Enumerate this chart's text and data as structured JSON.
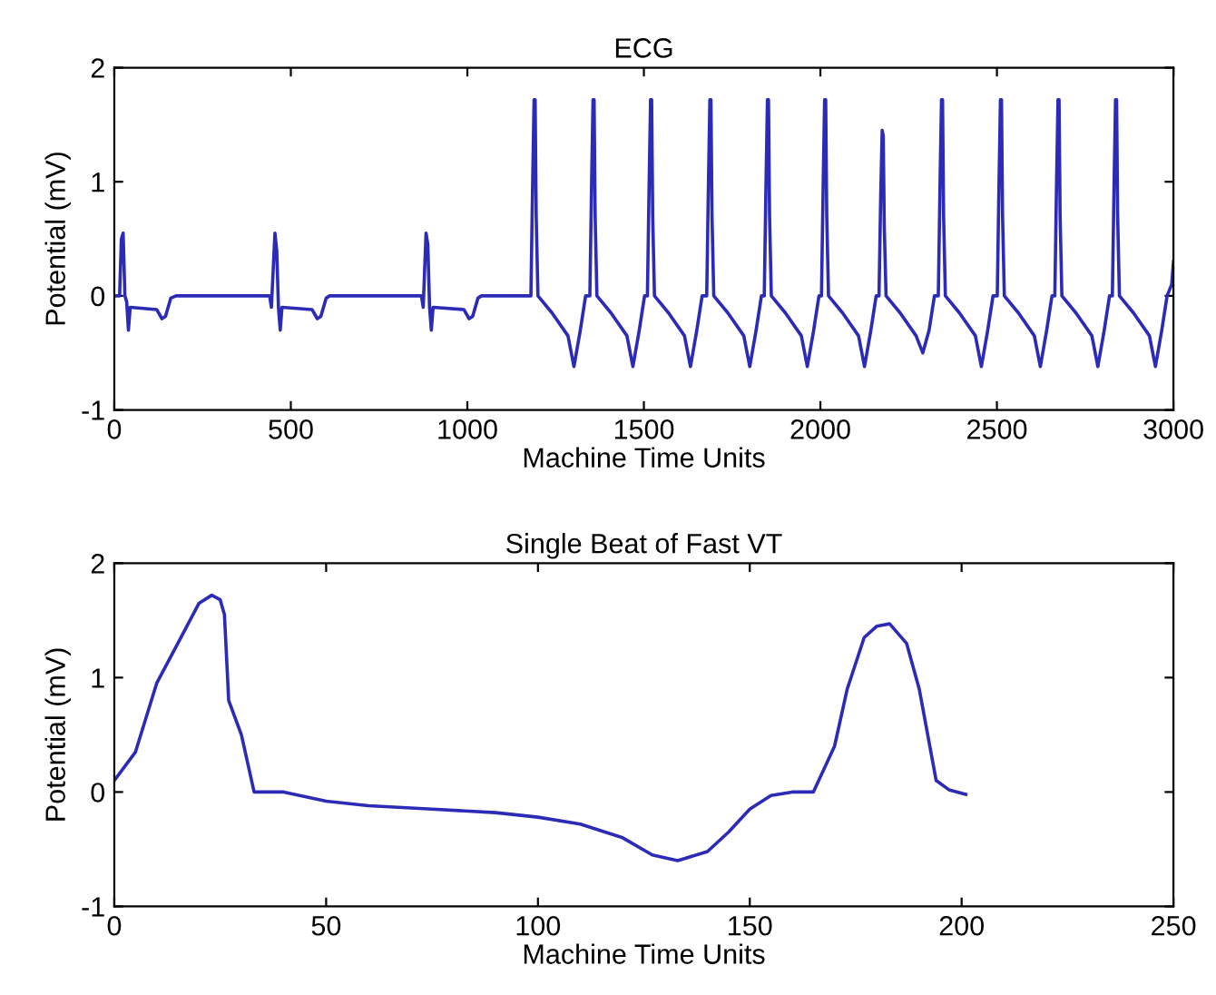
{
  "chart_data": [
    {
      "type": "line",
      "title": "ECG",
      "xlabel": "Machine Time Units",
      "ylabel": "Potential (mV)",
      "xlim": [
        0,
        3000
      ],
      "ylim": [
        -1,
        2
      ],
      "xticks": [
        0,
        500,
        1000,
        1500,
        2000,
        2500,
        3000
      ],
      "yticks": [
        -1,
        0,
        1,
        2
      ],
      "line_style": "solid",
      "series": [
        {
          "color": "#2b2bb8",
          "x": [
            0,
            15,
            20,
            25,
            30,
            35,
            40,
            45,
            120,
            135,
            145,
            160,
            175,
            440,
            445,
            455,
            460,
            465,
            470,
            475,
            560,
            575,
            585,
            600,
            610,
            870,
            875,
            883,
            888,
            893,
            898,
            903,
            990,
            1005,
            1015,
            1030,
            1040,
            1170,
            1180,
            1185,
            1189,
            1192,
            1195,
            1200,
            1240,
            1285,
            1302,
            1320,
            1335,
            1347,
            1352,
            1356,
            1359,
            1362,
            1367,
            1407,
            1452,
            1469,
            1487,
            1502,
            1510,
            1515,
            1519,
            1522,
            1525,
            1530,
            1570,
            1615,
            1632,
            1650,
            1665,
            1678,
            1683,
            1687,
            1690,
            1693,
            1698,
            1738,
            1783,
            1800,
            1818,
            1833,
            1841,
            1846,
            1850,
            1853,
            1856,
            1861,
            1901,
            1946,
            1963,
            1981,
            1996,
            2003,
            2008,
            2012,
            2015,
            2018,
            2023,
            2063,
            2108,
            2125,
            2143,
            2158,
            2166,
            2171,
            2175,
            2178,
            2181,
            2186,
            2226,
            2271,
            2290,
            2308,
            2323,
            2334,
            2339,
            2343,
            2346,
            2349,
            2354,
            2394,
            2439,
            2456,
            2474,
            2489,
            2501,
            2506,
            2510,
            2513,
            2516,
            2521,
            2561,
            2606,
            2623,
            2641,
            2656,
            2664,
            2669,
            2673,
            2676,
            2679,
            2684,
            2724,
            2769,
            2786,
            2804,
            2819,
            2827,
            2832,
            2836,
            2839,
            2842,
            2847,
            2887,
            2932,
            2949,
            2967,
            2982,
            2995,
            3000
          ],
          "values": [
            0,
            0,
            0.5,
            0.55,
            0,
            -0.05,
            -0.3,
            -0.1,
            -0.12,
            -0.2,
            -0.18,
            -0.02,
            0,
            0,
            -0.1,
            0.55,
            0.4,
            -0.1,
            -0.3,
            -0.1,
            -0.12,
            -0.2,
            -0.18,
            -0.02,
            0,
            0,
            -0.1,
            0.55,
            0.45,
            -0.1,
            -0.3,
            -0.1,
            -0.12,
            -0.2,
            -0.18,
            -0.02,
            0,
            0,
            0,
            1.0,
            1.72,
            1.72,
            0.7,
            0,
            -0.15,
            -0.35,
            -0.62,
            -0.3,
            0,
            0,
            1.0,
            1.72,
            1.72,
            0.7,
            0,
            -0.15,
            -0.35,
            -0.62,
            -0.3,
            0,
            0,
            1.0,
            1.72,
            1.72,
            0.7,
            0,
            -0.15,
            -0.35,
            -0.62,
            -0.3,
            0,
            0,
            1.0,
            1.72,
            1.72,
            0.7,
            0,
            -0.15,
            -0.35,
            -0.62,
            -0.3,
            0,
            0,
            1.0,
            1.72,
            1.72,
            0.7,
            0,
            -0.15,
            -0.35,
            -0.62,
            -0.3,
            0,
            0,
            1.0,
            1.72,
            1.72,
            0.7,
            0,
            -0.15,
            -0.35,
            -0.62,
            -0.3,
            0,
            0,
            0.9,
            1.45,
            1.4,
            0.6,
            0,
            -0.15,
            -0.35,
            -0.5,
            -0.3,
            0,
            0,
            1.0,
            1.72,
            1.72,
            0.7,
            0,
            -0.15,
            -0.35,
            -0.62,
            -0.3,
            0,
            0,
            1.0,
            1.72,
            1.72,
            0.7,
            0,
            -0.15,
            -0.35,
            -0.62,
            -0.3,
            0,
            0,
            1.0,
            1.72,
            1.72,
            0.7,
            0,
            -0.15,
            -0.35,
            -0.62,
            -0.3,
            0,
            0,
            1.0,
            1.72,
            1.72,
            0.7,
            0,
            -0.15,
            -0.35,
            -0.62,
            -0.3,
            0,
            0.1,
            0.3
          ]
        }
      ]
    },
    {
      "type": "line",
      "title": "Single Beat of Fast VT",
      "xlabel": "Machine Time Units",
      "ylabel": "Potential (mV)",
      "xlim": [
        0,
        250
      ],
      "ylim": [
        -1,
        2
      ],
      "xticks": [
        0,
        50,
        100,
        150,
        200,
        250
      ],
      "yticks": [
        -1,
        0,
        1,
        2
      ],
      "line_style": "solid",
      "series": [
        {
          "color": "#2b2bb8",
          "x": [
            0,
            5,
            10,
            15,
            20,
            23,
            25,
            26,
            27,
            30,
            33,
            40,
            50,
            60,
            75,
            90,
            100,
            110,
            120,
            127,
            133,
            140,
            145,
            150,
            155,
            160,
            165,
            170,
            173,
            177,
            180,
            183,
            187,
            190,
            194,
            197,
            201
          ],
          "values": [
            0.1,
            0.35,
            0.95,
            1.3,
            1.65,
            1.72,
            1.68,
            1.55,
            0.8,
            0.5,
            0.0,
            0.0,
            -0.08,
            -0.12,
            -0.15,
            -0.18,
            -0.22,
            -0.28,
            -0.4,
            -0.55,
            -0.6,
            -0.52,
            -0.35,
            -0.15,
            -0.03,
            0.0,
            0.0,
            0.4,
            0.9,
            1.35,
            1.45,
            1.47,
            1.3,
            0.9,
            0.1,
            0.02,
            -0.02
          ]
        }
      ]
    }
  ]
}
